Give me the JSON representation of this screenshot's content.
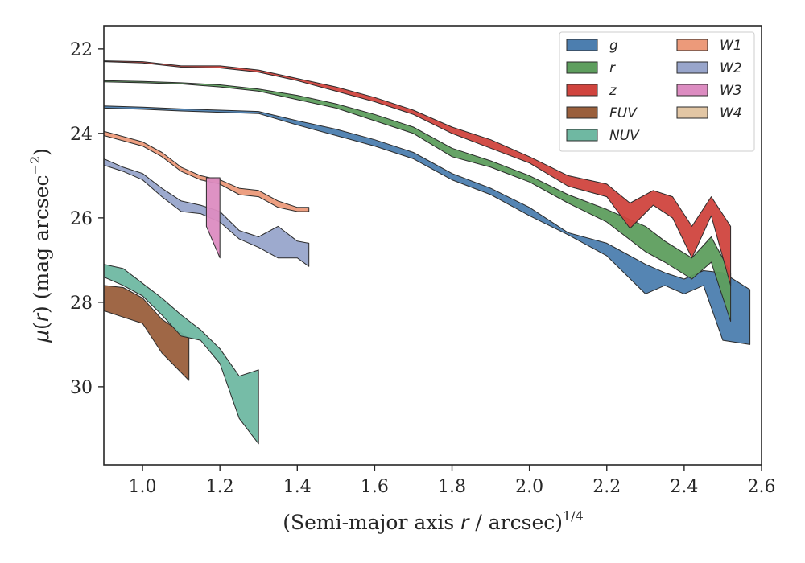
{
  "chart_data": {
    "type": "area",
    "xlabel": "(Semi-major axis r / arcsec)^1/4",
    "ylabel": "μ(r) (mag arcsec^−2)",
    "xlim": [
      0.9,
      2.6
    ],
    "ylim": [
      31.85,
      21.45
    ],
    "y_inverted": true,
    "x_ticks": [
      "1.0",
      "1.2",
      "1.4",
      "1.6",
      "1.8",
      "2.0",
      "2.2",
      "2.4",
      "2.6"
    ],
    "x_tick_values": [
      1.0,
      1.2,
      1.4,
      1.6,
      1.8,
      2.0,
      2.2,
      2.4,
      2.6
    ],
    "y_ticks": [
      "22",
      "24",
      "26",
      "28",
      "30"
    ],
    "y_tick_values": [
      22,
      24,
      26,
      28,
      30
    ],
    "grid": false,
    "legend": {
      "position": "top-right",
      "columns": 2
    },
    "series": [
      {
        "name": "g",
        "color": "#4c7eaf",
        "x": [
          0.9,
          1.0,
          1.1,
          1.2,
          1.3,
          1.4,
          1.5,
          1.6,
          1.7,
          1.8,
          1.9,
          2.0,
          2.1,
          2.2,
          2.3,
          2.35,
          2.4,
          2.45,
          2.5,
          2.57
        ],
        "y_upper": [
          23.35,
          23.38,
          23.42,
          23.45,
          23.48,
          23.7,
          23.9,
          24.15,
          24.45,
          24.95,
          25.3,
          25.75,
          26.35,
          26.6,
          27.1,
          27.3,
          27.45,
          27.25,
          27.3,
          27.7
        ],
        "y_lower": [
          23.4,
          23.43,
          23.47,
          23.5,
          23.53,
          23.8,
          24.05,
          24.3,
          24.6,
          25.1,
          25.45,
          25.95,
          26.4,
          26.9,
          27.8,
          27.6,
          27.8,
          27.6,
          28.9,
          29.0
        ]
      },
      {
        "name": "r",
        "color": "#5e9e5e",
        "x": [
          0.9,
          1.0,
          1.1,
          1.2,
          1.3,
          1.4,
          1.5,
          1.6,
          1.7,
          1.8,
          1.9,
          2.0,
          2.1,
          2.2,
          2.3,
          2.35,
          2.42,
          2.47,
          2.52
        ],
        "y_upper": [
          22.75,
          22.77,
          22.8,
          22.85,
          22.95,
          23.1,
          23.3,
          23.55,
          23.85,
          24.35,
          24.65,
          25.0,
          25.45,
          25.8,
          26.2,
          26.55,
          26.95,
          26.45,
          27.3
        ],
        "y_lower": [
          22.78,
          22.8,
          22.83,
          22.9,
          23.0,
          23.2,
          23.4,
          23.7,
          24.0,
          24.55,
          24.8,
          25.15,
          25.65,
          26.1,
          26.8,
          27.05,
          27.45,
          27.05,
          28.45
        ]
      },
      {
        "name": "z",
        "color": "#d0443e",
        "x": [
          0.9,
          1.0,
          1.1,
          1.2,
          1.3,
          1.4,
          1.5,
          1.6,
          1.7,
          1.8,
          1.9,
          2.0,
          2.1,
          2.2,
          2.26,
          2.32,
          2.37,
          2.42,
          2.47,
          2.52
        ],
        "y_upper": [
          22.28,
          22.3,
          22.4,
          22.4,
          22.5,
          22.7,
          22.9,
          23.15,
          23.45,
          23.85,
          24.15,
          24.55,
          25.0,
          25.2,
          25.65,
          25.35,
          25.5,
          26.2,
          25.5,
          26.2
        ],
        "y_lower": [
          22.3,
          22.33,
          22.43,
          22.45,
          22.55,
          22.75,
          23.0,
          23.25,
          23.55,
          24.0,
          24.35,
          24.7,
          25.25,
          25.5,
          26.25,
          25.7,
          26.0,
          26.95,
          25.95,
          27.6
        ]
      },
      {
        "name": "FUV",
        "color": "#9a5f3c",
        "x": [
          0.9,
          0.95,
          1.0,
          1.05,
          1.12
        ],
        "y_upper": [
          27.6,
          27.65,
          27.9,
          28.4,
          28.85
        ],
        "y_lower": [
          28.2,
          28.35,
          28.5,
          29.2,
          29.85
        ]
      },
      {
        "name": "NUV",
        "color": "#6fb8a2",
        "x": [
          0.9,
          0.95,
          1.0,
          1.05,
          1.1,
          1.15,
          1.2,
          1.25,
          1.3
        ],
        "y_upper": [
          27.1,
          27.2,
          27.55,
          27.9,
          28.3,
          28.65,
          29.1,
          29.75,
          29.6
        ],
        "y_lower": [
          27.4,
          27.6,
          27.85,
          28.3,
          28.8,
          28.9,
          29.45,
          30.75,
          31.35
        ]
      },
      {
        "name": "W1",
        "color": "#ec9a7a",
        "x": [
          0.9,
          1.0,
          1.05,
          1.1,
          1.15,
          1.2,
          1.25,
          1.3,
          1.35,
          1.4,
          1.43
        ],
        "y_upper": [
          23.95,
          24.2,
          24.45,
          24.8,
          25.0,
          25.1,
          25.3,
          25.35,
          25.6,
          25.75,
          25.75
        ],
        "y_lower": [
          24.05,
          24.3,
          24.55,
          24.9,
          25.1,
          25.2,
          25.45,
          25.5,
          25.75,
          25.85,
          25.85
        ]
      },
      {
        "name": "W2",
        "color": "#98a5cb",
        "x": [
          0.9,
          0.95,
          1.0,
          1.05,
          1.1,
          1.15,
          1.2,
          1.25,
          1.3,
          1.35,
          1.4,
          1.43
        ],
        "y_upper": [
          24.6,
          24.8,
          24.95,
          25.3,
          25.6,
          25.7,
          25.85,
          26.3,
          26.45,
          26.2,
          26.55,
          26.6
        ],
        "y_lower": [
          24.75,
          24.9,
          25.1,
          25.5,
          25.85,
          25.9,
          26.1,
          26.5,
          26.7,
          26.95,
          26.95,
          27.15
        ]
      },
      {
        "name": "W3",
        "color": "#dc8cc1",
        "x": [
          1.165,
          1.2
        ],
        "y_upper": [
          25.05,
          25.05
        ],
        "y_lower": [
          26.2,
          26.95
        ]
      },
      {
        "name": "W4",
        "color": "#e2c6a4",
        "x": [],
        "y_upper": [],
        "y_lower": []
      }
    ]
  }
}
